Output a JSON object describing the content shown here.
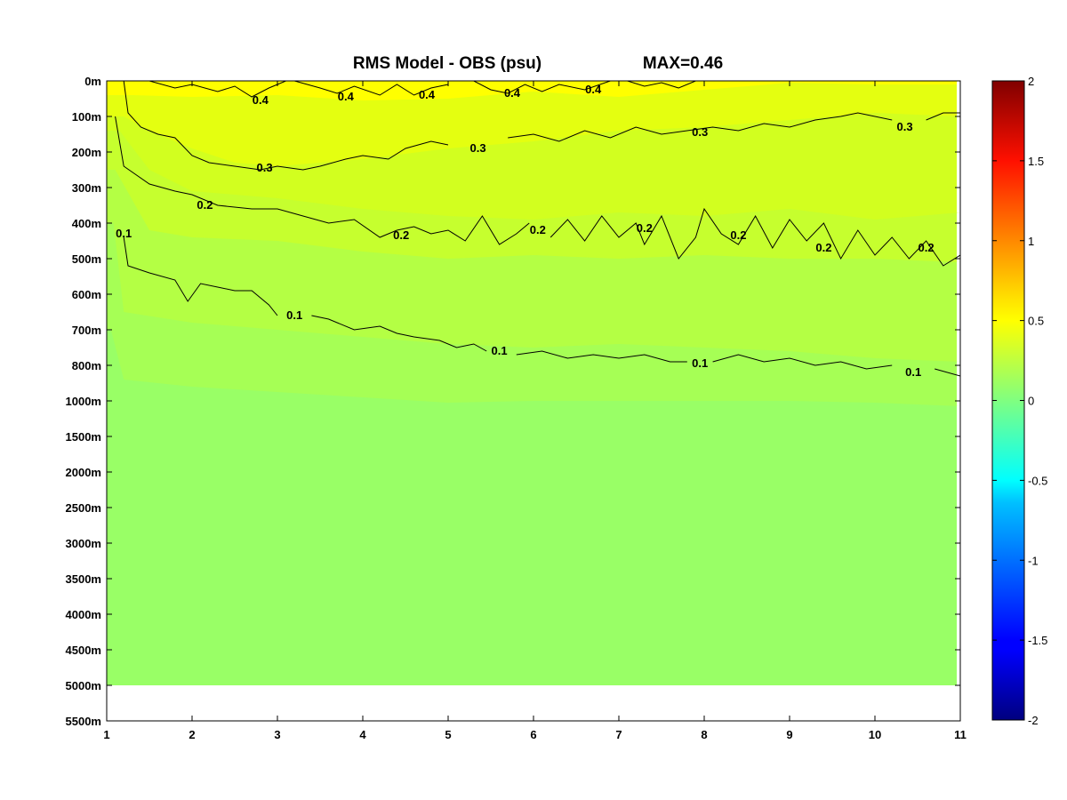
{
  "chart_data": {
    "type": "heatmap",
    "title": "RMS Model - OBS (psu)",
    "subtitle": "MAX=0.46",
    "x_ticks": [
      "1",
      "2",
      "3",
      "4",
      "5",
      "6",
      "7",
      "8",
      "9",
      "10",
      "11"
    ],
    "y_ticks": [
      "0m",
      "100m",
      "200m",
      "300m",
      "400m",
      "500m",
      "600m",
      "700m",
      "800m",
      "1000m",
      "1500m",
      "2000m",
      "2500m",
      "3000m",
      "3500m",
      "4000m",
      "4500m",
      "5000m",
      "5500m"
    ],
    "xlim": [
      1,
      11
    ],
    "data_bottom_depth": "5000m",
    "colorbar": {
      "range": [
        -2,
        2
      ],
      "ticks": [
        "2",
        "1.5",
        "1",
        "0.5",
        "0",
        "-0.5",
        "-1",
        "-1.5",
        "-2"
      ],
      "colormap": "jet"
    },
    "bands": [
      {
        "level": 0.4,
        "color": "#ffff00",
        "boundary": [
          [
            1.3,
            0.4
          ],
          [
            2,
            0.45
          ],
          [
            3,
            0.4
          ],
          [
            4,
            0.55
          ],
          [
            5,
            0.5
          ],
          [
            6,
            0.3
          ],
          [
            7,
            0.45
          ],
          [
            8,
            0.25
          ],
          [
            9,
            0.05
          ],
          [
            10,
            0.1
          ],
          [
            11,
            0.1
          ]
        ]
      },
      {
        "level": 0.3,
        "color": "#e4ff10",
        "boundary": [
          [
            1.2,
            1.0
          ],
          [
            1.5,
            1.4
          ],
          [
            2,
            1.9
          ],
          [
            2.5,
            2.3
          ],
          [
            3,
            2.4
          ],
          [
            4,
            2.2
          ],
          [
            5,
            1.9
          ],
          [
            6,
            1.7
          ],
          [
            7,
            1.4
          ],
          [
            8,
            1.3
          ],
          [
            9,
            1.1
          ],
          [
            10,
            0.9
          ],
          [
            11,
            1.0
          ]
        ]
      },
      {
        "level": 0.25,
        "color": "#d2ff1f",
        "boundary": [
          [
            1.15,
            1.4
          ],
          [
            1.5,
            2.5
          ],
          [
            2,
            3.1
          ],
          [
            3,
            3.3
          ],
          [
            4,
            3.6
          ],
          [
            5,
            3.8
          ],
          [
            6,
            3.9
          ],
          [
            7,
            3.7
          ],
          [
            8,
            3.8
          ],
          [
            9,
            3.6
          ],
          [
            10,
            3.9
          ],
          [
            11,
            3.7
          ]
        ]
      },
      {
        "level": 0.2,
        "color": "#c6ff2e",
        "boundary": [
          [
            1.1,
            2.5
          ],
          [
            1.5,
            4.2
          ],
          [
            2,
            4.4
          ],
          [
            3,
            4.5
          ],
          [
            4,
            4.8
          ],
          [
            5,
            5.0
          ],
          [
            6,
            4.9
          ],
          [
            7,
            5.0
          ],
          [
            8,
            4.9
          ],
          [
            9,
            5.0
          ],
          [
            10,
            5.0
          ],
          [
            11,
            5.1
          ]
        ]
      },
      {
        "level": 0.15,
        "color": "#b4ff44",
        "boundary": [
          [
            1.08,
            4.0
          ],
          [
            1.2,
            6.5
          ],
          [
            2,
            6.8
          ],
          [
            3,
            7.0
          ],
          [
            4,
            7.2
          ],
          [
            5,
            7.4
          ],
          [
            6,
            7.5
          ],
          [
            7,
            7.4
          ],
          [
            8,
            7.5
          ],
          [
            9,
            7.6
          ],
          [
            10,
            7.8
          ],
          [
            11,
            7.9
          ]
        ]
      },
      {
        "level": 0.1,
        "color": "#a6ff55",
        "boundary": [
          [
            1.05,
            7.0
          ],
          [
            1.2,
            8.4
          ],
          [
            2,
            8.6
          ],
          [
            3,
            8.75
          ],
          [
            4,
            8.9
          ],
          [
            5,
            9.05
          ],
          [
            6,
            9.0
          ],
          [
            7,
            9.0
          ],
          [
            8,
            9.0
          ],
          [
            9,
            9.0
          ],
          [
            10,
            9.05
          ],
          [
            11,
            9.15
          ]
        ]
      }
    ],
    "base_color": "#99ff66",
    "contours": [
      {
        "level": 0.4,
        "label": "0.4",
        "points": [
          [
            1.5,
            0.0
          ],
          [
            1.8,
            0.2
          ],
          [
            2.0,
            0.1
          ],
          [
            2.3,
            0.3
          ],
          [
            2.5,
            0.15
          ],
          [
            2.7,
            0.45
          ],
          [
            2.9,
            0.2
          ],
          [
            3.1,
            0.0
          ]
        ],
        "labels": [
          [
            2.8,
            0.55
          ]
        ]
      },
      {
        "level": 0.4,
        "label": "0.4",
        "points": [
          [
            3.2,
            0.0
          ],
          [
            3.5,
            0.2
          ],
          [
            3.7,
            0.35
          ],
          [
            3.9,
            0.15
          ],
          [
            4.2,
            0.4
          ],
          [
            4.4,
            0.1
          ],
          [
            4.6,
            0.4
          ],
          [
            4.8,
            0.2
          ],
          [
            5.0,
            0.1
          ]
        ],
        "labels": [
          [
            3.8,
            0.45
          ],
          [
            4.75,
            0.4
          ]
        ]
      },
      {
        "level": 0.4,
        "label": "0.4",
        "points": [
          [
            5.3,
            0.0
          ],
          [
            5.5,
            0.25
          ],
          [
            5.7,
            0.35
          ],
          [
            5.9,
            0.1
          ],
          [
            6.1,
            0.3
          ],
          [
            6.3,
            0.1
          ],
          [
            6.6,
            0.25
          ],
          [
            6.9,
            0.0
          ]
        ],
        "labels": [
          [
            5.75,
            0.35
          ],
          [
            6.7,
            0.25
          ]
        ]
      },
      {
        "level": 0.4,
        "label": "",
        "points": [
          [
            7.1,
            0.0
          ],
          [
            7.3,
            0.15
          ],
          [
            7.5,
            0.05
          ],
          [
            7.7,
            0.2
          ],
          [
            7.9,
            0.0
          ]
        ],
        "labels": []
      },
      {
        "level": 0.3,
        "label": "0.3",
        "points": [
          [
            1.2,
            0.0
          ],
          [
            1.25,
            0.9
          ],
          [
            1.4,
            1.3
          ],
          [
            1.6,
            1.5
          ],
          [
            1.8,
            1.6
          ],
          [
            2.0,
            2.1
          ],
          [
            2.2,
            2.3
          ],
          [
            2.5,
            2.4
          ],
          [
            2.8,
            2.5
          ],
          [
            3.0,
            2.4
          ],
          [
            3.3,
            2.5
          ],
          [
            3.5,
            2.4
          ],
          [
            3.8,
            2.2
          ],
          [
            4.0,
            2.1
          ],
          [
            4.3,
            2.2
          ],
          [
            4.5,
            1.9
          ],
          [
            4.8,
            1.7
          ],
          [
            5.0,
            1.8
          ]
        ],
        "labels": [
          [
            2.85,
            2.45
          ],
          [
            5.35,
            1.9
          ]
        ]
      },
      {
        "level": 0.3,
        "label": "0.3",
        "points": [
          [
            5.7,
            1.6
          ],
          [
            6.0,
            1.5
          ],
          [
            6.3,
            1.7
          ],
          [
            6.6,
            1.4
          ],
          [
            6.9,
            1.6
          ],
          [
            7.2,
            1.3
          ],
          [
            7.5,
            1.5
          ],
          [
            7.8,
            1.4
          ],
          [
            8.1,
            1.3
          ],
          [
            8.4,
            1.4
          ],
          [
            8.7,
            1.2
          ],
          [
            9.0,
            1.3
          ],
          [
            9.3,
            1.1
          ],
          [
            9.6,
            1.0
          ],
          [
            9.8,
            0.9
          ],
          [
            10.2,
            1.1
          ]
        ],
        "labels": [
          [
            7.95,
            1.45
          ],
          [
            10.35,
            1.3
          ]
        ]
      },
      {
        "level": 0.3,
        "label": "",
        "points": [
          [
            10.6,
            1.1
          ],
          [
            10.8,
            0.9
          ],
          [
            11.0,
            0.9
          ]
        ],
        "labels": []
      },
      {
        "level": 0.2,
        "label": "0.2",
        "points": [
          [
            1.1,
            1.0
          ],
          [
            1.2,
            2.4
          ],
          [
            1.5,
            2.9
          ],
          [
            1.8,
            3.1
          ],
          [
            2.0,
            3.2
          ],
          [
            2.3,
            3.5
          ],
          [
            2.7,
            3.6
          ],
          [
            3.0,
            3.6
          ],
          [
            3.3,
            3.8
          ],
          [
            3.6,
            4.0
          ],
          [
            3.9,
            3.9
          ],
          [
            4.2,
            4.4
          ],
          [
            4.4,
            4.2
          ],
          [
            4.6,
            4.1
          ],
          [
            4.8,
            4.3
          ],
          [
            5.0,
            4.2
          ],
          [
            5.2,
            4.5
          ],
          [
            5.4,
            3.8
          ],
          [
            5.6,
            4.6
          ],
          [
            5.8,
            4.3
          ],
          [
            5.95,
            4.0
          ]
        ],
        "labels": [
          [
            2.15,
            3.5
          ],
          [
            4.45,
            4.35
          ]
        ]
      },
      {
        "level": 0.2,
        "label": "0.2",
        "points": [
          [
            6.2,
            4.4
          ],
          [
            6.4,
            3.9
          ],
          [
            6.6,
            4.5
          ],
          [
            6.8,
            3.8
          ],
          [
            7.0,
            4.4
          ],
          [
            7.2,
            4.0
          ],
          [
            7.3,
            4.6
          ],
          [
            7.5,
            3.8
          ],
          [
            7.7,
            5.0
          ],
          [
            7.9,
            4.4
          ],
          [
            8.0,
            3.6
          ],
          [
            8.2,
            4.3
          ],
          [
            8.4,
            4.6
          ],
          [
            8.6,
            3.8
          ],
          [
            8.8,
            4.7
          ],
          [
            9.0,
            3.9
          ],
          [
            9.2,
            4.5
          ],
          [
            9.4,
            4.0
          ],
          [
            9.6,
            5.0
          ],
          [
            9.8,
            4.2
          ],
          [
            10.0,
            4.9
          ],
          [
            10.2,
            4.4
          ],
          [
            10.4,
            5.0
          ],
          [
            10.6,
            4.5
          ],
          [
            10.8,
            5.2
          ],
          [
            11.0,
            4.9
          ]
        ],
        "labels": [
          [
            6.05,
            4.2
          ],
          [
            7.3,
            4.15
          ],
          [
            8.4,
            4.35
          ],
          [
            9.4,
            4.7
          ],
          [
            10.6,
            4.7
          ]
        ]
      },
      {
        "level": 0.1,
        "label": "0.1",
        "points": [
          [
            1.2,
            4.4
          ],
          [
            1.25,
            5.2
          ],
          [
            1.5,
            5.4
          ],
          [
            1.8,
            5.6
          ],
          [
            1.95,
            6.2
          ],
          [
            2.1,
            5.7
          ],
          [
            2.3,
            5.8
          ],
          [
            2.5,
            5.9
          ],
          [
            2.7,
            5.9
          ],
          [
            2.9,
            6.3
          ],
          [
            3.0,
            6.6
          ]
        ],
        "labels": [
          [
            1.2,
            4.3
          ],
          [
            3.2,
            6.6
          ]
        ]
      },
      {
        "level": 0.1,
        "label": "0.1",
        "points": [
          [
            3.4,
            6.6
          ],
          [
            3.6,
            6.7
          ],
          [
            3.9,
            7.0
          ],
          [
            4.2,
            6.9
          ],
          [
            4.4,
            7.1
          ],
          [
            4.6,
            7.2
          ],
          [
            4.9,
            7.3
          ],
          [
            5.1,
            7.5
          ],
          [
            5.3,
            7.4
          ],
          [
            5.45,
            7.6
          ]
        ],
        "labels": [
          [
            5.6,
            7.6
          ]
        ]
      },
      {
        "level": 0.1,
        "label": "0.1",
        "points": [
          [
            5.8,
            7.7
          ],
          [
            6.1,
            7.6
          ],
          [
            6.4,
            7.8
          ],
          [
            6.7,
            7.7
          ],
          [
            7.0,
            7.8
          ],
          [
            7.3,
            7.7
          ],
          [
            7.6,
            7.9
          ],
          [
            7.8,
            7.9
          ]
        ],
        "labels": [
          [
            7.95,
            7.95
          ]
        ]
      },
      {
        "level": 0.1,
        "label": "0.1",
        "points": [
          [
            8.1,
            7.9
          ],
          [
            8.4,
            7.7
          ],
          [
            8.7,
            7.9
          ],
          [
            9.0,
            7.8
          ],
          [
            9.3,
            8.0
          ],
          [
            9.6,
            7.9
          ],
          [
            9.9,
            8.1
          ],
          [
            10.2,
            8.0
          ]
        ],
        "labels": [
          [
            10.45,
            8.2
          ]
        ]
      },
      {
        "level": 0.1,
        "label": "",
        "points": [
          [
            10.7,
            8.1
          ],
          [
            11.0,
            8.3
          ]
        ],
        "labels": []
      }
    ]
  }
}
